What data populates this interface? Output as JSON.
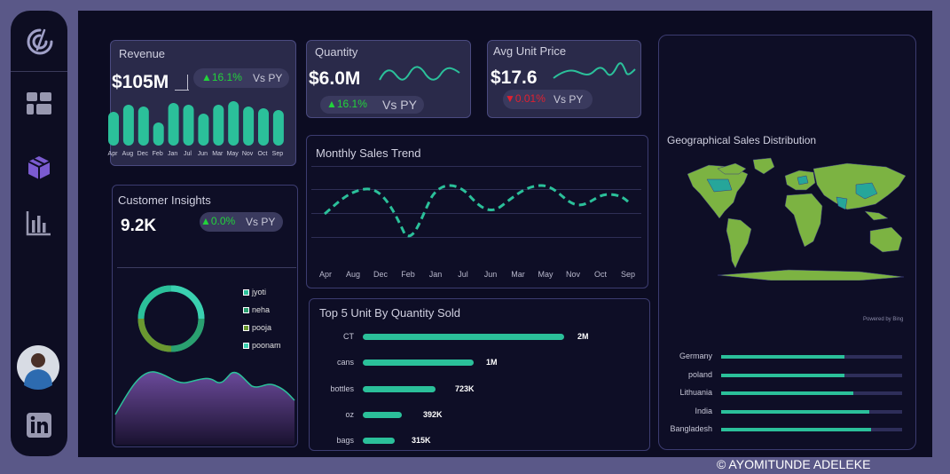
{
  "revenue": {
    "title": "Revenue",
    "value": "$105M",
    "change": "▲16.1%",
    "vs": "Vs PY",
    "months": [
      "Apr",
      "Aug",
      "Dec",
      "Feb",
      "Jan",
      "Jul",
      "Jun",
      "Mar",
      "May",
      "Nov",
      "Oct",
      "Sep"
    ]
  },
  "quantity": {
    "title": "Quantity",
    "value": "$6.0M",
    "change": "▲16.1%",
    "vs": "Vs PY"
  },
  "avg_unit_price": {
    "title": "Avg Unit Price",
    "value": "$17.6",
    "change": "▼0.01%",
    "vs": "Vs PY"
  },
  "customer_insights": {
    "title": "Customer Insights",
    "value": "9.2K",
    "change": "▲0.0%",
    "vs": "Vs PY",
    "legend": [
      "jyoti",
      "neha",
      "pooja",
      "poonam"
    ]
  },
  "monthly_sales_trend": {
    "title": "Monthly Sales Trend",
    "months": [
      "Apr",
      "Aug",
      "Dec",
      "Feb",
      "Jan",
      "Jul",
      "Jun",
      "Mar",
      "May",
      "Nov",
      "Oct",
      "Sep"
    ]
  },
  "top5": {
    "title": "Top 5 Unit By Quantity Sold",
    "items": [
      {
        "label": "CT",
        "value": "2M"
      },
      {
        "label": "cans",
        "value": "1M"
      },
      {
        "label": "bottles",
        "value": "723K"
      },
      {
        "label": "oz",
        "value": "392K"
      },
      {
        "label": "bags",
        "value": "315K"
      }
    ]
  },
  "geo": {
    "title": "Geographical Sales Distribution",
    "powered": "Powered by Bing",
    "countries": [
      {
        "label": "Germany",
        "fill": 0.68
      },
      {
        "label": "poland",
        "fill": 0.68
      },
      {
        "label": "Lithuania",
        "fill": 0.73
      },
      {
        "label": "India",
        "fill": 0.82
      },
      {
        "label": "Bangladesh",
        "fill": 0.83
      }
    ]
  },
  "footer": {
    "copyright": "© AYOMITUNDE ADELEKE"
  },
  "colors": {
    "accent": "#2bc09a",
    "up": "#22d33b",
    "down": "#e02030",
    "panel": "#2a2a4a",
    "background": "#0c0c22"
  },
  "icons": [
    "logo-icon",
    "dashboard-icon",
    "box-icon",
    "bar-chart-icon",
    "avatar",
    "linkedin-icon"
  ]
}
